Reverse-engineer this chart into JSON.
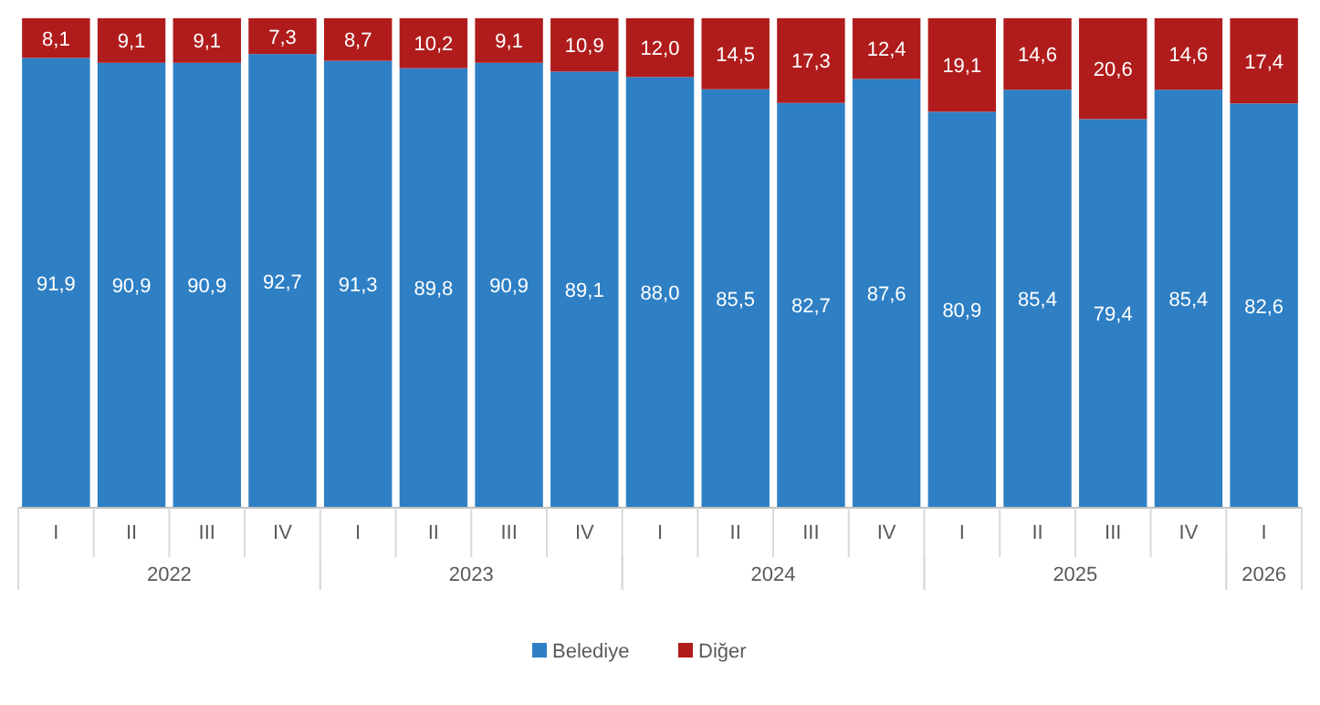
{
  "chart_data": {
    "type": "bar",
    "stacked": true,
    "categories": [
      "I",
      "II",
      "III",
      "IV",
      "I",
      "II",
      "III",
      "IV",
      "I",
      "II",
      "III",
      "IV",
      "I",
      "II",
      "III",
      "IV",
      "I"
    ],
    "series": [
      {
        "name": "Belediye",
        "color": "#2e7fc4",
        "values": [
          91.9,
          90.9,
          90.9,
          92.7,
          91.3,
          89.8,
          90.9,
          89.1,
          88.0,
          85.5,
          82.7,
          87.6,
          80.9,
          85.4,
          79.4,
          85.4,
          82.6
        ],
        "value_labels": [
          "91,9",
          "90,9",
          "90,9",
          "92,7",
          "91,3",
          "89,8",
          "90,9",
          "89,1",
          "88,0",
          "85,5",
          "82,7",
          "87,6",
          "80,9",
          "85,4",
          "79,4",
          "85,4",
          "82,6"
        ]
      },
      {
        "name": "Diğer",
        "color": "#b01c1c",
        "values": [
          8.1,
          9.1,
          9.1,
          7.3,
          8.7,
          10.2,
          9.1,
          10.9,
          12.0,
          14.5,
          17.3,
          12.4,
          19.1,
          14.6,
          20.6,
          14.6,
          17.4
        ],
        "value_labels": [
          "8,1",
          "9,1",
          "9,1",
          "7,3",
          "8,7",
          "10,2",
          "9,1",
          "10,9",
          "12,0",
          "14,5",
          "17,3",
          "12,4",
          "19,1",
          "14,6",
          "20,6",
          "14,6",
          "17,4"
        ]
      }
    ],
    "ylim": [
      0,
      100
    ],
    "tick_labels": "x",
    "legend": "bottom",
    "annotations": [
      "2022",
      "2023",
      "2024",
      "2025",
      "2026"
    ]
  }
}
